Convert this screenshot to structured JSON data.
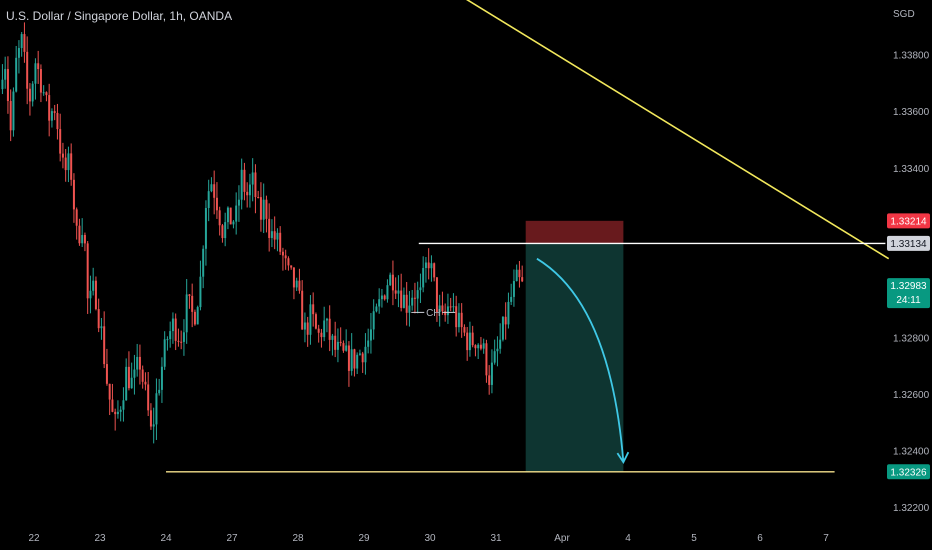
{
  "header": {
    "title": "U.S. Dollar / Singapore Dollar, 1h, OANDA",
    "currency": "SGD"
  },
  "colors": {
    "background": "#000000",
    "up": "#26a69a",
    "down": "#ef5350",
    "trendline": "#f2e85c",
    "resistance": "#ffffff",
    "support": "#f5e08c",
    "stop_zone": "#7a1f22",
    "target_zone": "#0f3b36",
    "projection_arrow": "#3fc8e6",
    "axis_text": "#b2b5be"
  },
  "chart_data": {
    "type": "candlestick",
    "y_axis": {
      "unit": "SGD",
      "ylim": [
        1.3212,
        1.3396
      ],
      "ticks": [
        {
          "value": 1.338,
          "label": "1.33800"
        },
        {
          "value": 1.336,
          "label": "1.33600"
        },
        {
          "value": 1.334,
          "label": "1.33400"
        },
        {
          "value": 1.328,
          "label": "1.32800"
        },
        {
          "value": 1.326,
          "label": "1.32600"
        },
        {
          "value": 1.324,
          "label": "1.32400"
        },
        {
          "value": 1.322,
          "label": "1.32200"
        }
      ]
    },
    "x_axis": {
      "ticks": [
        {
          "pos": 0,
          "label": "22"
        },
        {
          "pos": 1,
          "label": "23"
        },
        {
          "pos": 2,
          "label": "24"
        },
        {
          "pos": 3,
          "label": "27"
        },
        {
          "pos": 4,
          "label": "28"
        },
        {
          "pos": 5,
          "label": "29"
        },
        {
          "pos": 6,
          "label": "30"
        },
        {
          "pos": 7,
          "label": "31"
        },
        {
          "pos": 8,
          "label": "Apr"
        },
        {
          "pos": 9,
          "label": "4"
        },
        {
          "pos": 10,
          "label": "5"
        },
        {
          "pos": 11,
          "label": "6"
        },
        {
          "pos": 12,
          "label": "7"
        }
      ]
    },
    "price_path": [
      [
        -0.52,
        1.3368
      ],
      [
        -0.45,
        1.3382
      ],
      [
        -0.35,
        1.3352
      ],
      [
        -0.27,
        1.3377
      ],
      [
        -0.18,
        1.3385
      ],
      [
        -0.08,
        1.3362
      ],
      [
        0.02,
        1.3378
      ],
      [
        0.12,
        1.337
      ],
      [
        0.22,
        1.3358
      ],
      [
        0.32,
        1.3362
      ],
      [
        0.45,
        1.3338
      ],
      [
        0.55,
        1.3342
      ],
      [
        0.65,
        1.3315
      ],
      [
        0.75,
        1.3322
      ],
      [
        0.82,
        1.329
      ],
      [
        0.92,
        1.3298
      ],
      [
        1.02,
        1.3282
      ],
      [
        1.12,
        1.3262
      ],
      [
        1.22,
        1.3248
      ],
      [
        1.32,
        1.3258
      ],
      [
        1.4,
        1.3268
      ],
      [
        1.5,
        1.3263
      ],
      [
        1.6,
        1.3272
      ],
      [
        1.7,
        1.3258
      ],
      [
        1.78,
        1.3245
      ],
      [
        1.86,
        1.326
      ],
      [
        1.94,
        1.327
      ],
      [
        2.02,
        1.328
      ],
      [
        2.12,
        1.3285
      ],
      [
        2.22,
        1.328
      ],
      [
        2.32,
        1.3292
      ],
      [
        2.42,
        1.3287
      ],
      [
        2.52,
        1.33
      ],
      [
        2.6,
        1.3328
      ],
      [
        2.68,
        1.3336
      ],
      [
        2.76,
        1.333
      ],
      [
        2.86,
        1.3318
      ],
      [
        2.96,
        1.3322
      ],
      [
        3.06,
        1.3322
      ],
      [
        3.15,
        1.3337
      ],
      [
        3.22,
        1.333
      ],
      [
        3.32,
        1.3335
      ],
      [
        3.42,
        1.3322
      ],
      [
        3.5,
        1.3328
      ],
      [
        3.58,
        1.3317
      ],
      [
        3.66,
        1.3315
      ],
      [
        3.75,
        1.331
      ],
      [
        3.85,
        1.3302
      ],
      [
        3.92,
        1.33
      ],
      [
        4.0,
        1.3295
      ],
      [
        4.1,
        1.3282
      ],
      [
        4.2,
        1.3288
      ],
      [
        4.3,
        1.328
      ],
      [
        4.4,
        1.3285
      ],
      [
        4.55,
        1.3276
      ],
      [
        4.7,
        1.3273
      ],
      [
        4.85,
        1.3272
      ],
      [
        4.95,
        1.3275
      ],
      [
        5.05,
        1.3278
      ],
      [
        5.15,
        1.3285
      ],
      [
        5.25,
        1.3293
      ],
      [
        5.35,
        1.33
      ],
      [
        5.45,
        1.3302
      ],
      [
        5.55,
        1.3296
      ],
      [
        5.65,
        1.3292
      ],
      [
        5.75,
        1.3297
      ],
      [
        5.85,
        1.3294
      ],
      [
        5.92,
        1.3303
      ],
      [
        5.98,
        1.3308
      ],
      [
        6.05,
        1.33
      ],
      [
        6.12,
        1.329
      ],
      [
        6.2,
        1.3285
      ],
      [
        6.3,
        1.3293
      ],
      [
        6.4,
        1.3286
      ],
      [
        6.5,
        1.3282
      ],
      [
        6.6,
        1.3278
      ],
      [
        6.7,
        1.328
      ],
      [
        6.8,
        1.3276
      ],
      [
        6.9,
        1.3266
      ],
      [
        7.0,
        1.3273
      ],
      [
        7.08,
        1.328
      ],
      [
        7.16,
        1.3288
      ],
      [
        7.24,
        1.3295
      ],
      [
        7.32,
        1.33
      ],
      [
        7.4,
        1.3298
      ]
    ],
    "horizontal_lines": [
      {
        "name": "resistance",
        "price": 1.33134,
        "from": 5.83,
        "to": 12.9
      },
      {
        "name": "support",
        "price": 1.32326,
        "from": 2.0,
        "to": 12.13
      }
    ],
    "trendline": {
      "from": [
        5.7,
        1.3412
      ],
      "to": [
        12.95,
        1.3308
      ]
    },
    "position": {
      "from": 7.45,
      "to": 8.93,
      "stop_top": 1.33214,
      "entry": 1.33134,
      "target": 1.32326
    },
    "annotation": {
      "label": "CH",
      "x": 6.05,
      "price": 1.3289
    },
    "projection": {
      "from": [
        7.62,
        1.3308
      ],
      "to": [
        8.93,
        1.3236
      ]
    },
    "price_labels": [
      {
        "name": "stop-level",
        "label": "1.33214",
        "price": 1.33214,
        "bg": "#f23645",
        "fg": "#ffffff"
      },
      {
        "name": "resistance-level",
        "label": "1.33134",
        "price": 1.33134,
        "bg": "#d1d4dc",
        "fg": "#131722"
      },
      {
        "name": "last-price",
        "label": "1.32983",
        "sublabel": "24:11",
        "price": 1.32983,
        "bg": "#089981",
        "fg": "#ffffff"
      },
      {
        "name": "support-level",
        "label": "1.32326",
        "price": 1.32326,
        "bg": "#089981",
        "fg": "#ffffff"
      }
    ]
  }
}
